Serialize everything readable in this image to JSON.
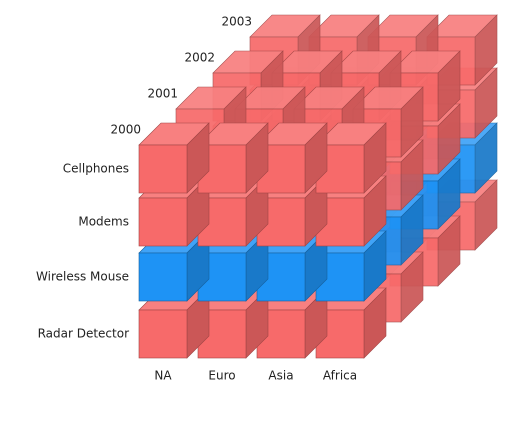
{
  "rows": [
    {
      "label": "Cellphones",
      "color": "#f76a6a"
    },
    {
      "label": "Modems",
      "color": "#f76a6a"
    },
    {
      "label": "Wireless Mouse",
      "color": "#1e93f5"
    },
    {
      "label": "Radar Detector",
      "color": "#f76a6a"
    }
  ],
  "columns": [
    "NA",
    "Euro",
    "Asia",
    "Africa"
  ],
  "layers": [
    "2000",
    "2001",
    "2002",
    "2003"
  ]
}
